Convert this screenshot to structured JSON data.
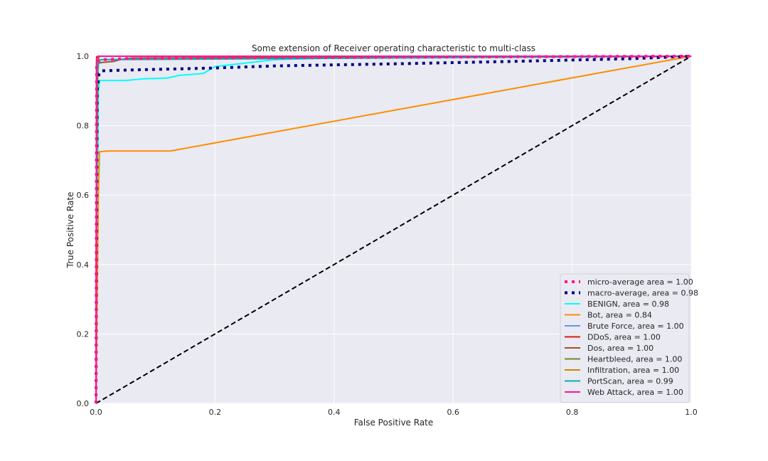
{
  "chart_data": {
    "type": "line",
    "title": "Some extension of Receiver operating characteristic to multi-class",
    "xlabel": "False Positive Rate",
    "ylabel": "True Positive Rate",
    "xlim": [
      0.0,
      1.0
    ],
    "ylim": [
      0.0,
      1.0
    ],
    "xticks": [
      "0.0",
      "0.2",
      "0.4",
      "0.6",
      "0.8",
      "1.0"
    ],
    "yticks": [
      "0.0",
      "0.2",
      "0.4",
      "0.6",
      "0.8",
      "1.0"
    ],
    "grid": true,
    "legend_position": "lower-right",
    "series": [
      {
        "label": "micro-average area = 1.00",
        "color": "#ff1493",
        "style": "dotted-thick",
        "x": [
          0.0,
          0.001,
          0.003,
          0.01,
          0.05,
          0.2,
          0.5,
          0.8,
          1.0
        ],
        "y": [
          0.0,
          0.97,
          0.985,
          0.99,
          0.993,
          0.995,
          0.997,
          0.999,
          1.0
        ]
      },
      {
        "label": "macro-average, area = 0.98",
        "color": "#000080",
        "style": "dotted-thick",
        "x": [
          0.0,
          0.002,
          0.005,
          0.01,
          0.05,
          0.1,
          0.2,
          0.3,
          0.5,
          0.7,
          0.9,
          1.0
        ],
        "y": [
          0.0,
          0.9,
          0.95,
          0.958,
          0.96,
          0.962,
          0.966,
          0.972,
          0.978,
          0.985,
          0.993,
          1.0
        ]
      },
      {
        "label": "BENIGN, area = 0.98",
        "color": "#00ffff",
        "style": "solid",
        "x": [
          0.0,
          0.004,
          0.006,
          0.01,
          0.05,
          0.08,
          0.12,
          0.14,
          0.18,
          0.2,
          0.25,
          0.3,
          0.4,
          0.5,
          1.0
        ],
        "y": [
          0.0,
          0.9,
          0.93,
          0.93,
          0.93,
          0.935,
          0.937,
          0.945,
          0.95,
          0.97,
          0.98,
          0.99,
          0.995,
          0.997,
          1.0
        ]
      },
      {
        "label": "Bot, area = 0.84",
        "color": "#ff8c00",
        "style": "solid",
        "x": [
          0.0,
          0.004,
          0.006,
          0.02,
          0.125,
          1.0
        ],
        "y": [
          0.0,
          0.6,
          0.725,
          0.727,
          0.727,
          1.0
        ]
      },
      {
        "label": "Brute Force, area = 1.00",
        "color": "#6495ed",
        "style": "solid",
        "x": [
          0.0,
          0.001,
          0.004,
          1.0
        ],
        "y": [
          0.0,
          0.99,
          1.0,
          1.0
        ]
      },
      {
        "label": "DDoS, area = 1.00",
        "color": "#d7191c",
        "style": "solid",
        "x": [
          0.0,
          0.001,
          0.003,
          1.0
        ],
        "y": [
          0.0,
          0.998,
          1.0,
          1.0
        ]
      },
      {
        "label": "Dos, area = 1.00",
        "color": "#a0522d",
        "style": "solid",
        "x": [
          0.0,
          0.001,
          0.004,
          0.01,
          0.03,
          0.04,
          0.06,
          1.0
        ],
        "y": [
          0.0,
          0.97,
          0.98,
          0.982,
          0.985,
          0.99,
          0.995,
          1.0
        ]
      },
      {
        "label": "Heartbleed, area = 1.00",
        "color": "#6b8e23",
        "style": "solid",
        "x": [
          0.0,
          0.001,
          0.003,
          0.005,
          1.0
        ],
        "y": [
          0.0,
          0.6,
          0.95,
          1.0,
          1.0
        ]
      },
      {
        "label": "Infiltration, area = 1.00",
        "color": "#cd8500",
        "style": "solid",
        "x": [
          0.0,
          0.001,
          0.003,
          1.0
        ],
        "y": [
          0.0,
          0.98,
          1.0,
          1.0
        ]
      },
      {
        "label": "PortScan, area = 0.99",
        "color": "#00b2b2",
        "style": "solid",
        "x": [
          0.0,
          0.001,
          0.004,
          0.008,
          1.0
        ],
        "y": [
          0.0,
          0.93,
          0.985,
          0.99,
          1.0
        ]
      },
      {
        "label": "Web Attack, area = 1.00",
        "color": "#ff1493",
        "style": "solid",
        "x": [
          0.0,
          0.001,
          0.003,
          1.0
        ],
        "y": [
          0.0,
          0.99,
          1.0,
          1.0
        ]
      }
    ],
    "reference_line": {
      "color": "#000000",
      "style": "dashed",
      "x": [
        0.0,
        1.0
      ],
      "y": [
        0.0,
        1.0
      ]
    }
  }
}
